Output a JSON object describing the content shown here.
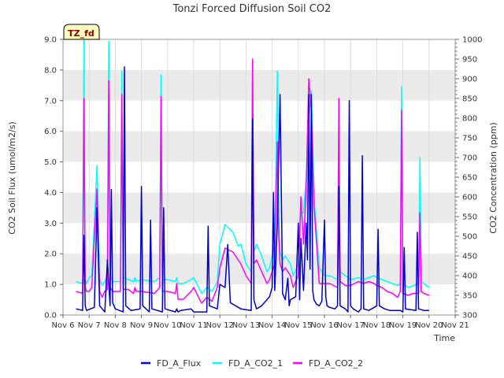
{
  "chart_data": {
    "type": "line",
    "title": "Tonzi Forced Diffusion Soil CO2",
    "badge": "TZ_fd",
    "xlabel": "Time",
    "ylabel_left": "CO2 Soil Flux (umol/m2/s)",
    "ylabel_right": "CO2 Concentration (ppm)",
    "x_range": [
      6,
      21
    ],
    "x_ticks": [
      {
        "v": 6,
        "label": "Nov 6"
      },
      {
        "v": 7,
        "label": "Nov 7"
      },
      {
        "v": 8,
        "label": "Nov 8"
      },
      {
        "v": 9,
        "label": "Nov 9"
      },
      {
        "v": 10,
        "label": "Nov 10"
      },
      {
        "v": 11,
        "label": "Nov 11"
      },
      {
        "v": 12,
        "label": "Nov 12"
      },
      {
        "v": 13,
        "label": "Nov 13"
      },
      {
        "v": 14,
        "label": "Nov 14"
      },
      {
        "v": 15,
        "label": "Nov 15"
      },
      {
        "v": 16,
        "label": "Nov 16"
      },
      {
        "v": 17,
        "label": "Nov 17"
      },
      {
        "v": 18,
        "label": "Nov 18"
      },
      {
        "v": 19,
        "label": "Nov 19"
      },
      {
        "v": 20,
        "label": "Nov 20"
      },
      {
        "v": 21,
        "label": "Nov 21"
      }
    ],
    "y_left_range": [
      0,
      9
    ],
    "y_left_ticks": [
      "0.0",
      "1.0",
      "2.0",
      "3.0",
      "4.0",
      "5.0",
      "6.0",
      "7.0",
      "8.0",
      "9.0"
    ],
    "y_right_range": [
      300,
      1000
    ],
    "y_right_ticks": [
      "300",
      "350",
      "400",
      "450",
      "500",
      "550",
      "600",
      "650",
      "700",
      "750",
      "800",
      "850",
      "900",
      "950",
      "1000"
    ],
    "legend": [
      "FD_A_Flux",
      "FD_A_CO2_1",
      "FD_A_CO2_2"
    ],
    "colors": {
      "flux": "#0000cc",
      "co2_1": "#00ffff",
      "co2_2": "#ff00ff",
      "band": "#ebebeb",
      "badge_bg": "#ffffc0",
      "badge_text": "#8b0000"
    },
    "series": [
      {
        "name": "FD_A_Flux",
        "axis": "left",
        "x": [
          6.5,
          6.75,
          6.8,
          6.85,
          6.9,
          7.2,
          7.3,
          7.4,
          7.5,
          7.6,
          7.7,
          7.8,
          7.85,
          7.9,
          8.0,
          8.3,
          8.35,
          8.4,
          8.6,
          8.95,
          9.0,
          9.05,
          9.3,
          9.35,
          9.4,
          9.8,
          9.85,
          9.9,
          10.3,
          10.35,
          10.4,
          10.5,
          10.9,
          11.0,
          11.5,
          11.55,
          11.6,
          11.9,
          12.0,
          12.2,
          12.3,
          12.4,
          12.8,
          13.2,
          13.25,
          13.3,
          13.4,
          13.6,
          13.9,
          14.0,
          14.05,
          14.1,
          14.2,
          14.3,
          14.4,
          14.5,
          14.6,
          14.65,
          14.7,
          14.9,
          15.0,
          15.05,
          15.1,
          15.2,
          15.3,
          15.35,
          15.4,
          15.45,
          15.5,
          15.55,
          15.6,
          15.7,
          15.8,
          15.9,
          16.0,
          16.05,
          16.1,
          16.2,
          16.4,
          16.5,
          16.55,
          16.6,
          16.8,
          16.9,
          16.95,
          17.0,
          17.1,
          17.3,
          17.4,
          17.45,
          17.5,
          17.7,
          17.9,
          18.0,
          18.05,
          18.1,
          18.3,
          18.5,
          18.9,
          19.0,
          19.05,
          19.1,
          19.5,
          19.55,
          19.6,
          19.8,
          20.0
        ],
        "y": [
          0.2,
          0.15,
          2.6,
          0.3,
          0.15,
          0.25,
          3.5,
          0.3,
          0.2,
          0.1,
          1.8,
          0.3,
          4.1,
          0.4,
          0.2,
          0.1,
          8.1,
          0.3,
          0.15,
          0.2,
          4.2,
          0.3,
          0.1,
          3.1,
          0.2,
          0.1,
          3.5,
          0.2,
          0.1,
          0.2,
          0.1,
          0.15,
          0.2,
          0.1,
          0.1,
          2.9,
          0.3,
          0.2,
          1.0,
          0.9,
          2.3,
          0.4,
          0.2,
          0.15,
          6.4,
          0.5,
          0.2,
          0.3,
          0.6,
          0.9,
          4.0,
          0.8,
          3.0,
          7.2,
          0.7,
          0.5,
          1.2,
          0.3,
          0.5,
          0.6,
          3.0,
          0.5,
          2.5,
          0.8,
          3.0,
          1.8,
          7.2,
          1.5,
          7.2,
          0.8,
          0.5,
          0.35,
          0.3,
          0.45,
          3.1,
          0.6,
          0.3,
          0.25,
          0.2,
          0.3,
          4.2,
          0.3,
          0.2,
          0.1,
          7.0,
          0.3,
          0.2,
          0.1,
          0.2,
          5.2,
          0.2,
          0.15,
          0.25,
          0.3,
          2.8,
          0.3,
          0.2,
          0.15,
          0.15,
          0.1,
          2.2,
          0.2,
          0.15,
          2.7,
          0.2,
          0.15,
          0.15
        ]
      },
      {
        "name": "FD_A_CO2_1",
        "axis": "right",
        "x": [
          6.5,
          6.75,
          6.8,
          6.85,
          6.9,
          7.0,
          7.1,
          7.3,
          7.4,
          7.5,
          7.6,
          7.7,
          7.75,
          7.8,
          7.9,
          8.2,
          8.25,
          8.3,
          8.5,
          8.7,
          8.75,
          8.8,
          9.0,
          9.5,
          9.7,
          9.75,
          9.8,
          10.0,
          10.3,
          10.35,
          10.4,
          10.6,
          10.9,
          11.0,
          11.3,
          11.5,
          11.7,
          11.9,
          12.0,
          12.2,
          12.5,
          12.7,
          12.8,
          13.0,
          13.2,
          13.25,
          13.3,
          13.4,
          13.6,
          13.8,
          13.9,
          14.1,
          14.2,
          14.25,
          14.3,
          14.4,
          14.5,
          14.7,
          14.8,
          15.0,
          15.1,
          15.2,
          15.3,
          15.4,
          15.5,
          15.6,
          15.8,
          16.0,
          16.2,
          16.5,
          16.55,
          16.6,
          16.8,
          17.0,
          17.3,
          17.5,
          17.7,
          17.9,
          18.0,
          18.2,
          18.4,
          18.6,
          18.8,
          18.9,
          18.95,
          19.0,
          19.2,
          19.4,
          19.6,
          19.65,
          19.7,
          19.8,
          20.0
        ],
        "y": [
          385,
          380,
          1000,
          390,
          380,
          395,
          400,
          680,
          390,
          375,
          385,
          400,
          995,
          400,
          385,
          385,
          920,
          395,
          390,
          385,
          395,
          385,
          390,
          385,
          395,
          910,
          390,
          390,
          385,
          395,
          380,
          380,
          390,
          395,
          355,
          370,
          360,
          385,
          480,
          530,
          510,
          475,
          480,
          430,
          410,
          900,
          460,
          480,
          450,
          410,
          420,
          480,
          920,
          560,
          460,
          440,
          450,
          430,
          400,
          430,
          560,
          560,
          650,
          800,
          870,
          600,
          420,
          400,
          400,
          390,
          600,
          410,
          400,
          390,
          395,
          390,
          395,
          400,
          395,
          390,
          385,
          380,
          375,
          380,
          880,
          380,
          370,
          375,
          380,
          700,
          385,
          380,
          370
        ]
      },
      {
        "name": "FD_A_CO2_2",
        "axis": "right",
        "x": [
          6.5,
          6.75,
          6.8,
          6.85,
          6.9,
          7.0,
          7.1,
          7.3,
          7.4,
          7.5,
          7.6,
          7.7,
          7.75,
          7.8,
          7.9,
          8.2,
          8.25,
          8.3,
          8.5,
          8.7,
          8.75,
          8.8,
          9.0,
          9.5,
          9.7,
          9.75,
          9.8,
          10.0,
          10.3,
          10.35,
          10.4,
          10.6,
          10.9,
          11.0,
          11.3,
          11.5,
          11.7,
          11.9,
          12.0,
          12.2,
          12.5,
          12.7,
          12.8,
          13.0,
          13.2,
          13.25,
          13.3,
          13.4,
          13.6,
          13.8,
          13.9,
          14.1,
          14.2,
          14.25,
          14.3,
          14.4,
          14.5,
          14.7,
          14.8,
          15.0,
          15.1,
          15.2,
          15.3,
          15.4,
          15.5,
          15.6,
          15.8,
          16.0,
          16.2,
          16.5,
          16.55,
          16.6,
          16.8,
          17.0,
          17.3,
          17.5,
          17.7,
          17.9,
          18.0,
          18.2,
          18.4,
          18.6,
          18.8,
          18.9,
          18.95,
          19.0,
          19.2,
          19.4,
          19.6,
          19.65,
          19.7,
          19.8,
          20.0
        ],
        "y": [
          360,
          355,
          850,
          370,
          360,
          360,
          370,
          620,
          360,
          345,
          360,
          365,
          895,
          370,
          360,
          360,
          860,
          365,
          365,
          355,
          370,
          360,
          360,
          355,
          370,
          855,
          360,
          360,
          355,
          380,
          340,
          340,
          360,
          370,
          330,
          345,
          335,
          370,
          420,
          470,
          460,
          440,
          430,
          400,
          380,
          950,
          430,
          440,
          410,
          380,
          390,
          430,
          740,
          500,
          430,
          410,
          420,
          400,
          370,
          400,
          600,
          480,
          620,
          900,
          820,
          580,
          380,
          380,
          380,
          370,
          850,
          385,
          375,
          375,
          385,
          380,
          385,
          380,
          375,
          370,
          360,
          355,
          345,
          360,
          820,
          355,
          350,
          355,
          355,
          560,
          360,
          355,
          350
        ]
      }
    ]
  }
}
